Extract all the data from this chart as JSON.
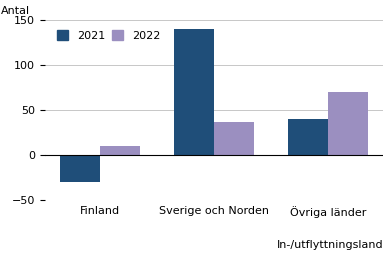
{
  "categories": [
    "Finland",
    "Sverige och Norden",
    "Övriga länder"
  ],
  "xlabel": "In-/utflyttningsland",
  "ylabel": "Antal",
  "values_2021": [
    -30,
    140,
    40
  ],
  "values_2022": [
    10,
    37,
    70
  ],
  "color_2021": "#1f4e79",
  "color_2022": "#9b8fc0",
  "ylim": [
    -50,
    150
  ],
  "yticks": [
    -50,
    0,
    50,
    100,
    150
  ],
  "legend_labels": [
    "2021",
    "2022"
  ],
  "bar_width": 0.35,
  "figsize": [
    3.89,
    2.6
  ],
  "dpi": 100
}
